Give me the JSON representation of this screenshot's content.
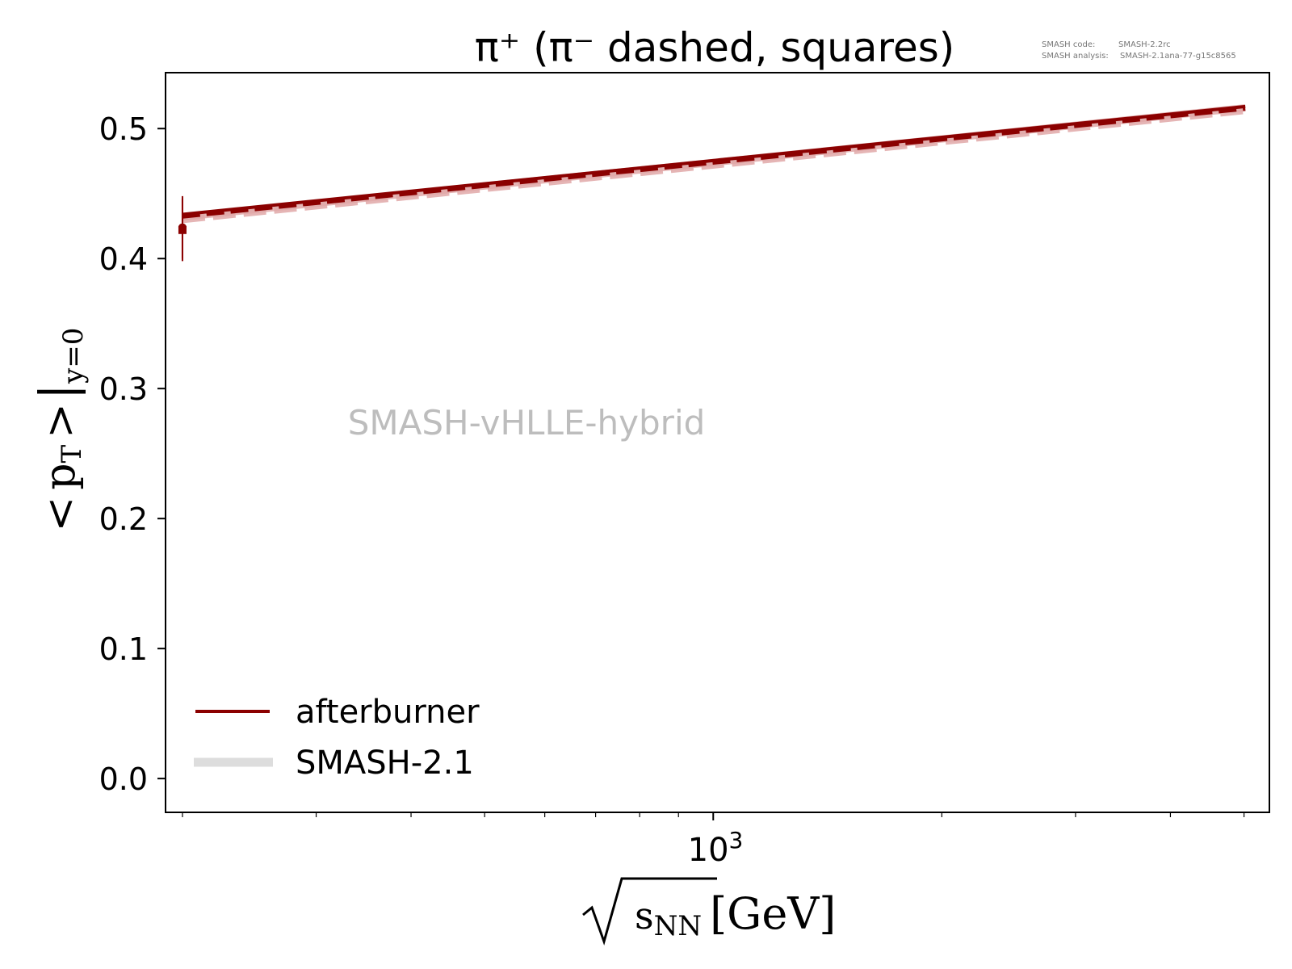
{
  "chart_data": {
    "type": "line",
    "title": "π⁺ (π⁻ dashed, squares)",
    "xlabel": {
      "radicand_main": "s",
      "radicand_sub": "NN",
      "unit": "[GeV]"
    },
    "ylabel": {
      "lt": "<",
      "main": "p",
      "main_sub": "T",
      "gt": ">",
      "bar": "|",
      "cond": "y=0"
    },
    "xscale": "log",
    "xlim": [
      190,
      5400
    ],
    "ylim": [
      -0.026,
      0.543
    ],
    "x_major_ticks": [
      {
        "value": 1000,
        "base": "10",
        "exp": "3"
      }
    ],
    "x_minor_ticks": [
      200,
      300,
      400,
      500,
      600,
      700,
      800,
      900,
      2000,
      3000,
      4000,
      5000
    ],
    "y_ticks": [
      {
        "value": 0.0,
        "label": "0.0"
      },
      {
        "value": 0.1,
        "label": "0.1"
      },
      {
        "value": 0.2,
        "label": "0.2"
      },
      {
        "value": 0.3,
        "label": "0.3"
      },
      {
        "value": 0.4,
        "label": "0.4"
      },
      {
        "value": 0.5,
        "label": "0.5"
      }
    ],
    "series": [
      {
        "name": "SMASH-2.1",
        "particle": "pi+",
        "style": "solid",
        "color": "#e0a8a8",
        "x": [
          200,
          5020
        ],
        "y": [
          0.432,
          0.516
        ]
      },
      {
        "name": "SMASH-2.1",
        "particle": "pi-",
        "style": "dashed",
        "color": "#e0a8a8",
        "x": [
          200,
          5020
        ],
        "y": [
          0.43,
          0.514
        ]
      },
      {
        "name": "afterburner",
        "particle": "pi+",
        "style": "solid",
        "color": "#8b0000",
        "x": [
          200,
          5020
        ],
        "y": [
          0.434,
          0.517
        ]
      },
      {
        "name": "afterburner",
        "particle": "pi-",
        "style": "dashed",
        "color": "#8b0000",
        "x": [
          200,
          5020
        ],
        "y": [
          0.432,
          0.515
        ]
      }
    ],
    "data_points": [
      {
        "particle": "pi+",
        "marker": "circle",
        "x": 200,
        "y": 0.424,
        "err": 0.024
      },
      {
        "particle": "pi-",
        "marker": "square",
        "x": 200,
        "y": 0.422,
        "err": 0.024
      }
    ],
    "legend": {
      "placement": "lower-left",
      "entries": [
        {
          "label": "afterburner",
          "color": "#8b0000",
          "kind": "thin"
        },
        {
          "label": "SMASH-2.1",
          "color": "#dddddd",
          "kind": "thick"
        }
      ]
    },
    "annotation": "SMASH-vHLLE-hybrid",
    "version_info": {
      "code_label": "SMASH code:",
      "code_value": "SMASH-2.2rc",
      "analysis_label": "SMASH analysis:",
      "analysis_value": "SMASH-2.1ana-77-g15c8565"
    },
    "grid": false
  }
}
